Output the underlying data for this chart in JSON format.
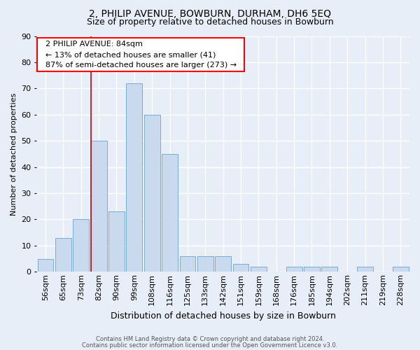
{
  "title": "2, PHILIP AVENUE, BOWBURN, DURHAM, DH6 5EQ",
  "subtitle": "Size of property relative to detached houses in Bowburn",
  "xlabel": "Distribution of detached houses by size in Bowburn",
  "ylabel": "Number of detached properties",
  "bar_labels": [
    "56sqm",
    "65sqm",
    "73sqm",
    "82sqm",
    "90sqm",
    "99sqm",
    "108sqm",
    "116sqm",
    "125sqm",
    "133sqm",
    "142sqm",
    "151sqm",
    "159sqm",
    "168sqm",
    "176sqm",
    "185sqm",
    "194sqm",
    "202sqm",
    "211sqm",
    "219sqm",
    "228sqm"
  ],
  "bar_values": [
    5,
    13,
    20,
    50,
    23,
    72,
    60,
    45,
    6,
    6,
    6,
    3,
    2,
    0,
    2,
    2,
    2,
    0,
    2,
    0,
    2
  ],
  "bar_color": "#c9d9ee",
  "bar_edge_color": "#7aadd4",
  "vline_color": "#cc0000",
  "vline_x": 3.0,
  "ylim": [
    0,
    90
  ],
  "yticks": [
    0,
    10,
    20,
    30,
    40,
    50,
    60,
    70,
    80,
    90
  ],
  "property_label": "2 PHILIP AVENUE: 84sqm",
  "annotation_line1": "← 13% of detached houses are smaller (41)",
  "annotation_line2": "87% of semi-detached houses are larger (273) →",
  "footnote1": "Contains HM Land Registry data © Crown copyright and database right 2024.",
  "footnote2": "Contains public sector information licensed under the Open Government Licence v3.0.",
  "bg_color": "#e8eef7",
  "plot_bg_color": "#e8eef7",
  "grid_color": "#ffffff",
  "title_fontsize": 10,
  "subtitle_fontsize": 9,
  "ylabel_fontsize": 8,
  "xlabel_fontsize": 9,
  "tick_fontsize": 8,
  "annot_fontsize": 8
}
